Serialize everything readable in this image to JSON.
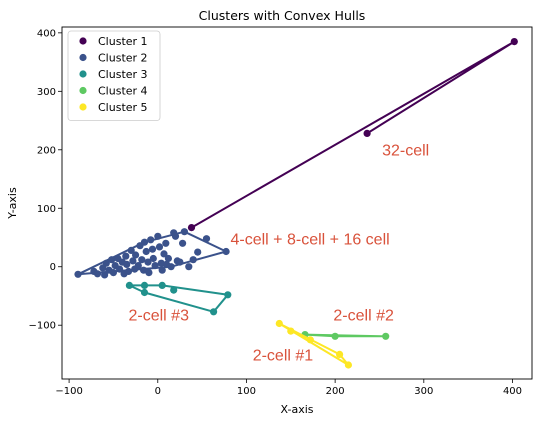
{
  "chart_data": {
    "type": "scatter",
    "title": "Clusters with Convex Hulls",
    "xlabel": "X-axis",
    "ylabel": "Y-axis",
    "xlim": [
      -108,
      422
    ],
    "ylim": [
      -192,
      410
    ],
    "xticks": [
      -100,
      0,
      100,
      200,
      300,
      400
    ],
    "yticks": [
      -100,
      0,
      100,
      200,
      300,
      400
    ],
    "grid": false,
    "legend_position": "top-left",
    "series": [
      {
        "name": "Cluster 1",
        "color": "#440154",
        "points": [
          [
            38,
            67
          ],
          [
            236,
            228
          ],
          [
            402,
            385
          ]
        ],
        "hull": [
          [
            38,
            67
          ],
          [
            402,
            385
          ],
          [
            236,
            228
          ]
        ]
      },
      {
        "name": "Cluster 2",
        "color": "#3b528b",
        "points": [
          [
            -90,
            -13
          ],
          [
            -72,
            -8
          ],
          [
            -68,
            -12
          ],
          [
            -62,
            -2
          ],
          [
            -60,
            -14
          ],
          [
            -58,
            6
          ],
          [
            -55,
            -6
          ],
          [
            -52,
            12
          ],
          [
            -50,
            -10
          ],
          [
            -48,
            2
          ],
          [
            -45,
            14
          ],
          [
            -43,
            -4
          ],
          [
            -40,
            8
          ],
          [
            -38,
            -12
          ],
          [
            -36,
            18
          ],
          [
            -35,
            4
          ],
          [
            -33,
            -8
          ],
          [
            -30,
            28
          ],
          [
            -28,
            10
          ],
          [
            -26,
            -4
          ],
          [
            -25,
            20
          ],
          [
            -22,
            2
          ],
          [
            -20,
            36
          ],
          [
            -18,
            12
          ],
          [
            -16,
            -6
          ],
          [
            -15,
            42
          ],
          [
            -13,
            26
          ],
          [
            -11,
            8
          ],
          [
            -10,
            -10
          ],
          [
            -8,
            46
          ],
          [
            -6,
            30
          ],
          [
            -5,
            14
          ],
          [
            -3,
            2
          ],
          [
            0,
            52
          ],
          [
            2,
            34
          ],
          [
            4,
            6
          ],
          [
            5,
            -6
          ],
          [
            7,
            22
          ],
          [
            9,
            40
          ],
          [
            10,
            4
          ],
          [
            12,
            14
          ],
          [
            15,
            0
          ],
          [
            18,
            58
          ],
          [
            20,
            52
          ],
          [
            22,
            10
          ],
          [
            25,
            8
          ],
          [
            28,
            40
          ],
          [
            30,
            60
          ],
          [
            35,
            0
          ],
          [
            40,
            12
          ],
          [
            45,
            25
          ],
          [
            55,
            48
          ],
          [
            77,
            26
          ]
        ],
        "hull": [
          [
            -90,
            -13
          ],
          [
            15,
            0
          ],
          [
            77,
            26
          ],
          [
            30,
            60
          ],
          [
            -15,
            42
          ],
          [
            -90,
            -13
          ]
        ]
      },
      {
        "name": "Cluster 3",
        "color": "#21918c",
        "points": [
          [
            -32,
            -32
          ],
          [
            -15,
            -32
          ],
          [
            -15,
            -44
          ],
          [
            5,
            -32
          ],
          [
            18,
            -40
          ],
          [
            63,
            -77
          ],
          [
            79,
            -48
          ]
        ],
        "hull": [
          [
            -32,
            -32
          ],
          [
            5,
            -32
          ],
          [
            79,
            -48
          ],
          [
            63,
            -77
          ],
          [
            -15,
            -44
          ],
          [
            -32,
            -32
          ]
        ]
      },
      {
        "name": "Cluster 4",
        "color": "#5ec962",
        "points": [
          [
            166,
            -116
          ],
          [
            200,
            -119
          ],
          [
            257,
            -119
          ]
        ],
        "hull": [
          [
            166,
            -116
          ],
          [
            257,
            -119
          ],
          [
            200,
            -119
          ],
          [
            166,
            -116
          ]
        ]
      },
      {
        "name": "Cluster 5",
        "color": "#fde725",
        "points": [
          [
            137,
            -97
          ],
          [
            150,
            -110
          ],
          [
            172,
            -125
          ],
          [
            205,
            -150
          ],
          [
            215,
            -168
          ]
        ],
        "hull": [
          [
            137,
            -97
          ],
          [
            205,
            -150
          ],
          [
            215,
            -168
          ],
          [
            137,
            -97
          ]
        ]
      }
    ],
    "annotations": [
      {
        "text": "32-cell",
        "x": 253,
        "y": 190,
        "color": "#d9523b"
      },
      {
        "text": "4-cell + 8-cell + 16 cell",
        "x": 82,
        "y": 38,
        "color": "#d9523b"
      },
      {
        "text": "2-cell #3",
        "x": -33,
        "y": -92,
        "color": "#d9523b"
      },
      {
        "text": "2-cell #2",
        "x": 198,
        "y": -92,
        "color": "#d9523b"
      },
      {
        "text": "2-cell #1",
        "x": 107,
        "y": -160,
        "color": "#d9523b"
      }
    ]
  }
}
